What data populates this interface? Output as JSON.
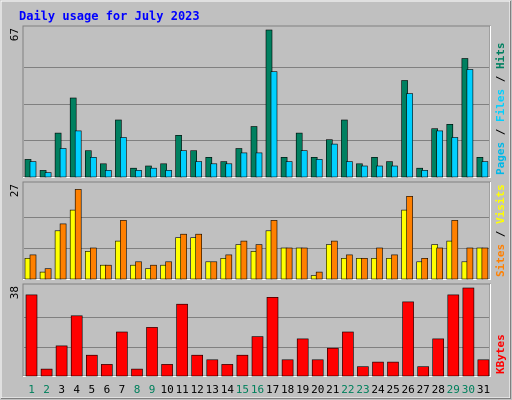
{
  "colors": {
    "background": "#c0c0c0",
    "border_light": "#ffffff",
    "border_dark": "#808080",
    "title": "#0000ff",
    "grid": "#808080",
    "axis_label": "#000000",
    "weekday_label": "#000000",
    "weekend_label": "#00805c",
    "hits": "#008060",
    "files": "#00d0ff",
    "pages": "#00b8e8",
    "visits": "#ffff00",
    "sites": "#ff8000",
    "kbytes": "#ff0000"
  },
  "chart_data": {
    "type": "bar",
    "title": "Daily usage for July 2023",
    "categories": [
      "1",
      "2",
      "3",
      "4",
      "5",
      "6",
      "7",
      "8",
      "9",
      "10",
      "11",
      "12",
      "13",
      "14",
      "15",
      "16",
      "17",
      "18",
      "19",
      "20",
      "21",
      "22",
      "23",
      "24",
      "25",
      "26",
      "27",
      "28",
      "29",
      "30",
      "31"
    ],
    "weekend_days": [
      "1",
      "2",
      "8",
      "9",
      "15",
      "16",
      "22",
      "23",
      "29",
      "30"
    ],
    "panels": [
      {
        "id": "hits_files",
        "max_label": "67",
        "ylim": [
          0,
          67
        ],
        "legend": [
          {
            "name": "Hits",
            "color": "#008060"
          },
          {
            "name": "Files",
            "color": "#00d0ff"
          },
          {
            "name": "Pages",
            "color": "#00b8e8"
          }
        ],
        "series": [
          {
            "name": "Hits",
            "values": [
              8,
              3,
              20,
              36,
              12,
              6,
              26,
              4,
              5,
              6,
              19,
              12,
              9,
              7,
              13,
              23,
              67,
              9,
              20,
              9,
              17,
              26,
              6,
              9,
              7,
              44,
              4,
              22,
              24,
              54,
              9
            ]
          },
          {
            "name": "Files",
            "values": [
              7,
              2,
              13,
              21,
              9,
              3,
              18,
              3,
              4,
              3,
              12,
              7,
              6,
              6,
              11,
              11,
              48,
              7,
              12,
              8,
              15,
              7,
              5,
              5,
              5,
              38,
              3,
              21,
              18,
              49,
              7
            ]
          }
        ]
      },
      {
        "id": "visits_sites",
        "max_label": "27",
        "ylim": [
          0,
          27
        ],
        "legend": [
          {
            "name": "Visits",
            "color": "#ffff00"
          },
          {
            "name": "Sites",
            "color": "#ff8000"
          }
        ],
        "series": [
          {
            "name": "Visits",
            "values": [
              6,
              2,
              14,
              20,
              8,
              4,
              11,
              4,
              3,
              4,
              12,
              12,
              5,
              6,
              10,
              8,
              14,
              9,
              9,
              1,
              10,
              6,
              6,
              6,
              6,
              20,
              5,
              10,
              11,
              5,
              9
            ]
          },
          {
            "name": "Sites",
            "values": [
              7,
              3,
              16,
              26,
              9,
              4,
              17,
              5,
              4,
              5,
              13,
              13,
              5,
              7,
              11,
              10,
              17,
              9,
              9,
              2,
              11,
              7,
              6,
              9,
              7,
              24,
              6,
              9,
              17,
              9,
              9
            ]
          }
        ]
      },
      {
        "id": "kbytes",
        "max_label": "38",
        "ylim": [
          0,
          38
        ],
        "legend": [
          {
            "name": "KBytes",
            "color": "#ff0000"
          }
        ],
        "series": [
          {
            "name": "KBytes",
            "values": [
              35,
              3,
              13,
              26,
              9,
              5,
              19,
              3,
              21,
              5,
              31,
              9,
              7,
              5,
              9,
              17,
              34,
              7,
              16,
              7,
              12,
              19,
              4,
              6,
              6,
              32,
              4,
              16,
              35,
              38,
              7
            ]
          }
        ]
      }
    ]
  }
}
